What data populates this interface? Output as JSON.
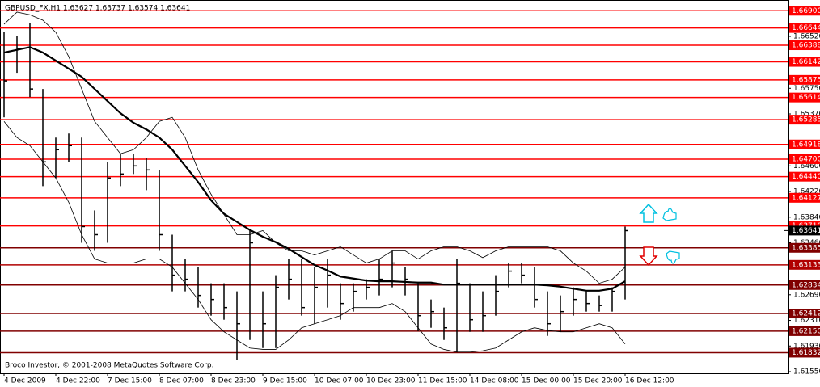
{
  "chart_data": {
    "type": "ohlc",
    "title": "GBPUSD_FX,H1  1.63627 1.63737 1.63574 1.63641",
    "copyright": "Broco Investor, © 2001-2008 MetaQuotes Software Corp.",
    "x": [
      "4 Dec 2009",
      null,
      null,
      null,
      "4 Dec 22:00",
      null,
      null,
      null,
      "7 Dec 15:00",
      null,
      null,
      null,
      "8 Dec 07:00",
      null,
      null,
      null,
      "8 Dec 23:00",
      null,
      null,
      null,
      "9 Dec 15:00",
      null,
      null,
      null,
      "10 Dec 07:00",
      null,
      null,
      null,
      "10 Dec 23:00",
      null,
      null,
      null,
      "11 Dec 15:00",
      null,
      null,
      null,
      "14 Dec 08:00",
      null,
      null,
      null,
      "15 Dec 00:00",
      null,
      null,
      null,
      "15 Dec 20:00",
      null,
      null,
      null,
      "16 Dec 12:00"
    ],
    "xlim": [
      -0.3125,
      60.625
    ],
    "high": [
      1.6658,
      1.6652,
      1.6672,
      1.6574,
      1.6502,
      1.6508,
      1.6502,
      1.6394,
      1.6466,
      1.6478,
      1.6478,
      1.6472,
      1.6454,
      1.6358,
      1.6322,
      1.631,
      1.6286,
      1.6286,
      1.6274,
      1.6364,
      1.6274,
      1.6298,
      1.6322,
      1.6322,
      1.631,
      1.6322,
      1.6286,
      1.6286,
      1.6292,
      1.6322,
      1.6334,
      1.631,
      1.6286,
      1.6262,
      1.625,
      1.6322,
      1.6286,
      1.6274,
      1.6298,
      1.6316,
      1.6316,
      1.631,
      1.6274,
      1.6268,
      1.628,
      1.6274,
      1.6268,
      1.628,
      1.637
    ],
    "low": [
      1.6532,
      1.6598,
      1.6562,
      1.643,
      1.6442,
      1.6466,
      1.6346,
      1.6334,
      1.6346,
      1.643,
      1.6448,
      1.6424,
      1.6334,
      1.6274,
      1.6274,
      1.625,
      1.6238,
      1.6232,
      1.6172,
      1.6202,
      1.619,
      1.619,
      1.6262,
      1.6238,
      1.6226,
      1.625,
      1.6232,
      1.6244,
      1.6262,
      1.6268,
      1.628,
      1.6268,
      1.6215,
      1.622,
      1.6202,
      1.6184,
      1.6214,
      1.6214,
      1.6238,
      1.628,
      1.6286,
      1.625,
      1.6208,
      1.6214,
      1.6238,
      1.6244,
      1.6244,
      1.6244,
      1.6262
    ],
    "close": [
      1.6586,
      1.6634,
      1.6574,
      1.6466,
      1.6484,
      1.649,
      1.637,
      1.6358,
      1.6442,
      1.6448,
      1.646,
      1.6454,
      1.6358,
      1.6298,
      1.6292,
      1.6268,
      1.6262,
      1.625,
      1.6226,
      1.6346,
      1.6226,
      1.628,
      1.6292,
      1.625,
      1.628,
      1.6298,
      1.6256,
      1.6274,
      1.628,
      1.6292,
      1.6316,
      1.6292,
      1.6238,
      1.6244,
      1.622,
      1.6286,
      1.6232,
      1.6238,
      1.6274,
      1.6304,
      1.6298,
      1.6262,
      1.6226,
      1.6244,
      1.6262,
      1.6256,
      1.6253,
      1.6274,
      1.6364
    ],
    "ma": [
      1.6628,
      1.6632,
      1.6636,
      1.6628,
      1.6616,
      1.6604,
      1.6592,
      1.6574,
      1.6556,
      1.6538,
      1.6524,
      1.6514,
      1.6502,
      1.6484,
      1.646,
      1.6436,
      1.6409,
      1.6389,
      1.6377,
      1.6365,
      1.6355,
      1.6347,
      1.6337,
      1.6325,
      1.6313,
      1.6305,
      1.6296,
      1.6293,
      1.629,
      1.6289,
      1.6289,
      1.6288,
      1.6287,
      1.6287,
      1.6284,
      1.6284,
      1.6284,
      1.6284,
      1.6284,
      1.6284,
      1.6284,
      1.6284,
      1.6283,
      1.6281,
      1.6278,
      1.6275,
      1.6275,
      1.6278,
      1.6289
    ],
    "upper": [
      1.667,
      1.6688,
      1.6684,
      1.6676,
      1.6658,
      1.6622,
      1.6574,
      1.6526,
      1.6502,
      1.6478,
      1.6484,
      1.6502,
      1.6526,
      1.6532,
      1.6502,
      1.6454,
      1.6418,
      1.6388,
      1.6358,
      1.6358,
      1.6364,
      1.6346,
      1.6334,
      1.6334,
      1.6328,
      1.6334,
      1.634,
      1.6328,
      1.6316,
      1.6322,
      1.6334,
      1.6334,
      1.6322,
      1.6334,
      1.634,
      1.634,
      1.6334,
      1.6324,
      1.6334,
      1.634,
      1.634,
      1.634,
      1.634,
      1.6334,
      1.6316,
      1.6304,
      1.6286,
      1.6292,
      1.631
    ],
    "lower": [
      1.6526,
      1.6502,
      1.649,
      1.6466,
      1.6442,
      1.6406,
      1.6358,
      1.6322,
      1.6316,
      1.6316,
      1.6316,
      1.6322,
      1.6322,
      1.631,
      1.6286,
      1.6262,
      1.6232,
      1.6214,
      1.6202,
      1.619,
      1.6188,
      1.6188,
      1.6202,
      1.622,
      1.6226,
      1.6232,
      1.6238,
      1.625,
      1.625,
      1.625,
      1.6256,
      1.6244,
      1.622,
      1.6196,
      1.6188,
      1.6184,
      1.6184,
      1.6186,
      1.619,
      1.6202,
      1.6214,
      1.622,
      1.6216,
      1.6214,
      1.6214,
      1.622,
      1.6226,
      1.622,
      1.6196
    ],
    "color": "#000000",
    "ylim": [
      1.61526,
      1.66999
    ],
    "yticks": [
      {
        "value": 1.6652,
        "label": "1.66520"
      },
      {
        "value": 1.6575,
        "label": "1.65750"
      },
      {
        "value": 1.6537,
        "label": "1.65370"
      },
      {
        "value": 1.646,
        "label": "1.64600"
      },
      {
        "value": 1.6422,
        "label": "1.64220"
      },
      {
        "value": 1.6384,
        "label": "1.63840"
      },
      {
        "value": 1.6346,
        "label": "1.63460"
      },
      {
        "value": 1.6269,
        "label": "1.62690"
      },
      {
        "value": 1.6231,
        "label": "1.62310"
      },
      {
        "value": 1.6193,
        "label": "1.61930"
      },
      {
        "value": 1.6155,
        "label": "1.61550"
      }
    ],
    "levels": [
      {
        "value": 1.669,
        "label": "1.66900"
      },
      {
        "value": 1.66644,
        "label": "1.66644"
      },
      {
        "value": 1.66388,
        "label": "1.66388"
      },
      {
        "value": 1.66142,
        "label": "1.66142"
      },
      {
        "value": 1.65875,
        "label": "1.65875"
      },
      {
        "value": 1.65614,
        "label": "1.65614"
      },
      {
        "value": 1.65285,
        "label": "1.65285"
      },
      {
        "value": 1.64918,
        "label": "1.64918"
      },
      {
        "value": 1.647,
        "label": "1.64700"
      },
      {
        "value": 1.6444,
        "label": "1.64440"
      },
      {
        "value": 1.64127,
        "label": "1.64127"
      },
      {
        "value": 1.6371,
        "label": "1.63710"
      },
      {
        "value": 1.63385,
        "label": "1.63385"
      },
      {
        "value": 1.63133,
        "label": "1.63133"
      },
      {
        "value": 1.62834,
        "label": "1.62834"
      },
      {
        "value": 1.62412,
        "label": "1.62412"
      },
      {
        "value": 1.6215,
        "label": "1.62150"
      },
      {
        "value": 1.61832,
        "label": "1.61832"
      }
    ],
    "level_colors": [
      "#ff0000",
      "#ff0000",
      "#ff0000",
      "#ff0000",
      "#ff0000",
      "#ff0000",
      "#ff0000",
      "#ff0000",
      "#ff0000",
      "#ff0000",
      "#ff0000",
      "#ff0000",
      "#800000",
      "#b00000",
      "#800000",
      "#800000",
      "#800000",
      "#800000"
    ],
    "current_price": {
      "value": 1.63641,
      "label": "1.63641"
    }
  }
}
